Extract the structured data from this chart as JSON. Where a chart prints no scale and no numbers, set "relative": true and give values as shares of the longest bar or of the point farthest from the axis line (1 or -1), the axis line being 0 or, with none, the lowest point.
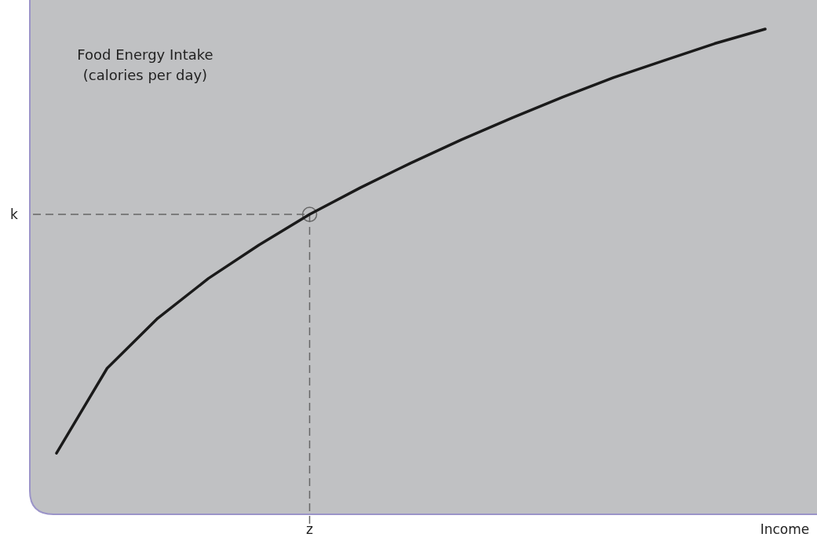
{
  "chart_data": {
    "type": "line",
    "relative": true,
    "ylabel": "Food Energy Intake\n(calories per day)",
    "xlabel": "Income",
    "categories": [
      null,
      null,
      null,
      null,
      null,
      null,
      null,
      null,
      null,
      null,
      null,
      null,
      null,
      null,
      null
    ],
    "series": [
      {
        "color": "#1a1a1a",
        "values": [
          0.126,
          0.301,
          0.404,
          0.486,
          0.555,
          0.618,
          0.673,
          0.724,
          0.772,
          0.817,
          0.86,
          0.9,
          0.935,
          0.97,
          1
        ]
      }
    ],
    "ref_lines": [
      {
        "axis": "y",
        "value": 0.618,
        "label": "k",
        "color": "#666666",
        "line_style": "dashed"
      },
      {
        "axis": "x",
        "label": "z",
        "color": "#666666",
        "line_style": "dashed"
      }
    ]
  }
}
